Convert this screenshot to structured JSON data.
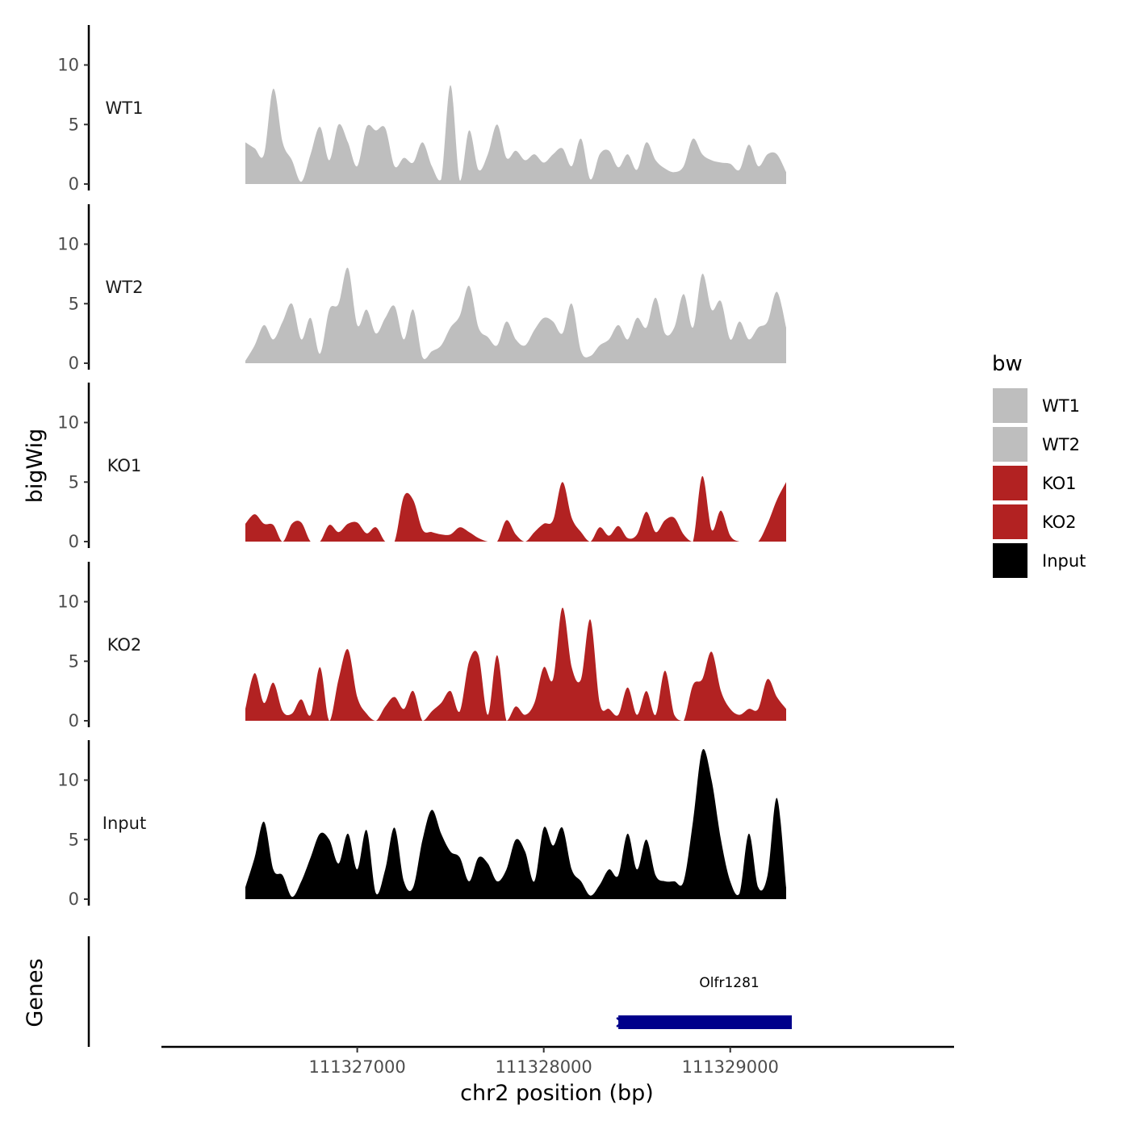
{
  "chart_data": {
    "type": "area",
    "subtype": "genome-browser-tracks",
    "ylabel": "bigWig",
    "xlabel": "chr2 position (bp)",
    "xlim": [
      111325950,
      111330200
    ],
    "xticks": [
      111327000,
      111328000,
      111329000
    ],
    "xtick_labels": [
      "111327000",
      "111328000",
      "111329000"
    ],
    "ylim": [
      0,
      13
    ],
    "yticks": [
      0,
      5,
      10
    ],
    "ytick_labels": [
      "0",
      "5",
      "10"
    ],
    "legend": {
      "title": "bw",
      "position": "right",
      "items": [
        {
          "label": "WT1",
          "color": "#bebebe"
        },
        {
          "label": "WT2",
          "color": "#bebebe"
        },
        {
          "label": "KO1",
          "color": "#b22222"
        },
        {
          "label": "KO2",
          "color": "#b22222"
        },
        {
          "label": "Input",
          "color": "#000000"
        }
      ]
    },
    "series": [
      {
        "name": "WT1",
        "color": "#bebebe",
        "x": [
          111326400,
          111326450,
          111326500,
          111326550,
          111326600,
          111326650,
          111326700,
          111326750,
          111326800,
          111326850,
          111326900,
          111326950,
          111327000,
          111327050,
          111327100,
          111327150,
          111327200,
          111327250,
          111327300,
          111327350,
          111327400,
          111327450,
          111327500,
          111327550,
          111327600,
          111327650,
          111327700,
          111327750,
          111327800,
          111327850,
          111327900,
          111327950,
          111328000,
          111328050,
          111328100,
          111328150,
          111328200,
          111328250,
          111328300,
          111328350,
          111328400,
          111328450,
          111328500,
          111328550,
          111328600,
          111328650,
          111328700,
          111328750,
          111328800,
          111328850,
          111328900,
          111328950,
          111329000,
          111329050,
          111329100,
          111329150,
          111329200,
          111329250,
          111329300
        ],
        "values": [
          3.5,
          3.0,
          2.5,
          8.0,
          3.5,
          2.0,
          0.2,
          2.5,
          4.8,
          2.0,
          5.0,
          3.5,
          1.5,
          4.8,
          4.5,
          4.7,
          1.5,
          2.2,
          1.8,
          3.5,
          1.5,
          0.4,
          8.3,
          0.3,
          4.5,
          1.2,
          2.5,
          5.0,
          2.2,
          2.8,
          2.0,
          2.5,
          1.8,
          2.5,
          3.0,
          1.5,
          3.8,
          0.4,
          2.5,
          2.8,
          1.4,
          2.5,
          1.2,
          3.5,
          2.0,
          1.3,
          1.0,
          1.5,
          3.8,
          2.5,
          2.0,
          1.8,
          1.7,
          1.2,
          3.3,
          1.5,
          2.5,
          2.5,
          1.0
        ]
      },
      {
        "name": "WT2",
        "color": "#bebebe",
        "x": [
          111326400,
          111326450,
          111326500,
          111326550,
          111326600,
          111326650,
          111326700,
          111326750,
          111326800,
          111326850,
          111326900,
          111326950,
          111327000,
          111327050,
          111327100,
          111327150,
          111327200,
          111327250,
          111327300,
          111327350,
          111327400,
          111327450,
          111327500,
          111327550,
          111327600,
          111327650,
          111327700,
          111327750,
          111327800,
          111327850,
          111327900,
          111327950,
          111328000,
          111328050,
          111328100,
          111328150,
          111328200,
          111328250,
          111328300,
          111328350,
          111328400,
          111328450,
          111328500,
          111328550,
          111328600,
          111328650,
          111328700,
          111328750,
          111328800,
          111328850,
          111328900,
          111328950,
          111329000,
          111329050,
          111329100,
          111329150,
          111329200,
          111329250,
          111329300
        ],
        "values": [
          0.2,
          1.5,
          3.2,
          2.0,
          3.5,
          5.0,
          2.0,
          3.8,
          0.8,
          4.5,
          5.0,
          8.0,
          3.2,
          4.5,
          2.5,
          3.8,
          4.8,
          2.0,
          4.5,
          0.5,
          1.0,
          1.5,
          3.0,
          4.0,
          6.5,
          3.0,
          2.2,
          1.5,
          3.5,
          2.0,
          1.5,
          2.8,
          3.8,
          3.5,
          2.5,
          5.0,
          1.0,
          0.6,
          1.5,
          2.0,
          3.2,
          2.0,
          3.8,
          3.0,
          5.5,
          2.5,
          3.0,
          5.8,
          3.0,
          7.5,
          4.5,
          5.2,
          2.0,
          3.5,
          2.0,
          3.0,
          3.5,
          6.0,
          3.0
        ]
      },
      {
        "name": "KO1",
        "color": "#b22222",
        "x": [
          111326400,
          111326450,
          111326500,
          111326550,
          111326600,
          111326650,
          111326700,
          111326750,
          111326800,
          111326850,
          111326900,
          111326950,
          111327000,
          111327050,
          111327100,
          111327150,
          111327200,
          111327250,
          111327300,
          111327350,
          111327400,
          111327450,
          111327500,
          111327550,
          111327600,
          111327650,
          111327700,
          111327750,
          111327800,
          111327850,
          111327900,
          111327950,
          111328000,
          111328050,
          111328100,
          111328150,
          111328200,
          111328250,
          111328300,
          111328350,
          111328400,
          111328450,
          111328500,
          111328550,
          111328600,
          111328650,
          111328700,
          111328750,
          111328800,
          111328850,
          111328900,
          111328950,
          111329000,
          111329050,
          111329100,
          111329150,
          111329200,
          111329250,
          111329300
        ],
        "values": [
          1.5,
          2.3,
          1.5,
          1.4,
          0,
          1.5,
          1.6,
          0,
          0,
          1.4,
          0.8,
          1.5,
          1.6,
          0.7,
          1.2,
          0,
          0,
          3.8,
          3.5,
          1.0,
          0.8,
          0.6,
          0.6,
          1.2,
          0.8,
          0.3,
          0,
          0,
          1.8,
          0.6,
          0,
          0.8,
          1.5,
          1.8,
          5.0,
          2.0,
          0.8,
          0,
          1.2,
          0.5,
          1.3,
          0.3,
          0.6,
          2.5,
          0.8,
          1.8,
          2.0,
          0.6,
          0,
          5.5,
          1.0,
          2.6,
          0.5,
          0,
          0,
          0,
          1.5,
          3.5,
          5.0
        ]
      },
      {
        "name": "KO2",
        "color": "#b22222",
        "x": [
          111326400,
          111326450,
          111326500,
          111326550,
          111326600,
          111326650,
          111326700,
          111326750,
          111326800,
          111326850,
          111326900,
          111326950,
          111327000,
          111327050,
          111327100,
          111327150,
          111327200,
          111327250,
          111327300,
          111327350,
          111327400,
          111327450,
          111327500,
          111327550,
          111327600,
          111327650,
          111327700,
          111327750,
          111327800,
          111327850,
          111327900,
          111327950,
          111328000,
          111328050,
          111328100,
          111328150,
          111328200,
          111328250,
          111328300,
          111328350,
          111328400,
          111328450,
          111328500,
          111328550,
          111328600,
          111328650,
          111328700,
          111328750,
          111328800,
          111328850,
          111328900,
          111328950,
          111329000,
          111329050,
          111329100,
          111329150,
          111329200,
          111329250,
          111329300
        ],
        "values": [
          1.0,
          4.0,
          1.5,
          3.2,
          0.8,
          0.6,
          1.8,
          0.5,
          4.5,
          0,
          3.5,
          6.0,
          2.0,
          0.6,
          0,
          1.2,
          2.0,
          1.0,
          2.5,
          0,
          0.8,
          1.5,
          2.5,
          0.8,
          5.0,
          5.5,
          0.5,
          5.5,
          0,
          1.2,
          0.5,
          1.5,
          4.5,
          3.5,
          9.5,
          4.5,
          3.5,
          8.5,
          1.5,
          1.0,
          0.5,
          2.8,
          0.5,
          2.5,
          0.5,
          4.2,
          0.5,
          0,
          3.0,
          3.5,
          5.8,
          2.5,
          1.0,
          0.5,
          1.0,
          1.0,
          3.5,
          2.0,
          1.0
        ]
      },
      {
        "name": "Input",
        "color": "#000000",
        "x": [
          111326400,
          111326450,
          111326500,
          111326550,
          111326600,
          111326650,
          111326700,
          111326750,
          111326800,
          111326850,
          111326900,
          111326950,
          111327000,
          111327050,
          111327100,
          111327150,
          111327200,
          111327250,
          111327300,
          111327350,
          111327400,
          111327450,
          111327500,
          111327550,
          111327600,
          111327650,
          111327700,
          111327750,
          111327800,
          111327850,
          111327900,
          111327950,
          111328000,
          111328050,
          111328100,
          111328150,
          111328200,
          111328250,
          111328300,
          111328350,
          111328400,
          111328450,
          111328500,
          111328550,
          111328600,
          111328650,
          111328700,
          111328750,
          111328800,
          111328850,
          111328900,
          111328950,
          111329000,
          111329050,
          111329100,
          111329150,
          111329200,
          111329250,
          111329300
        ],
        "values": [
          1.0,
          3.5,
          6.5,
          2.5,
          2.0,
          0.2,
          1.5,
          3.5,
          5.5,
          5.0,
          3.0,
          5.5,
          2.5,
          5.8,
          0.5,
          2.5,
          6.0,
          1.5,
          1.0,
          5.0,
          7.5,
          5.5,
          4.0,
          3.5,
          1.5,
          3.5,
          3.0,
          1.5,
          2.5,
          5.0,
          4.0,
          1.5,
          6.0,
          4.5,
          6.0,
          2.5,
          1.5,
          0.3,
          1.2,
          2.5,
          2.0,
          5.5,
          2.5,
          5.0,
          2.0,
          1.5,
          1.5,
          1.5,
          6.5,
          12.5,
          10.0,
          5.0,
          1.5,
          0.5,
          5.5,
          1.0,
          2.0,
          8.5,
          1.0
        ]
      }
    ],
    "genes": [
      {
        "name": "Olfr1281",
        "start": 111328400,
        "end": 111329330,
        "strand": "-",
        "color": "#00008b"
      }
    ],
    "lower_panel_label": "Genes"
  }
}
